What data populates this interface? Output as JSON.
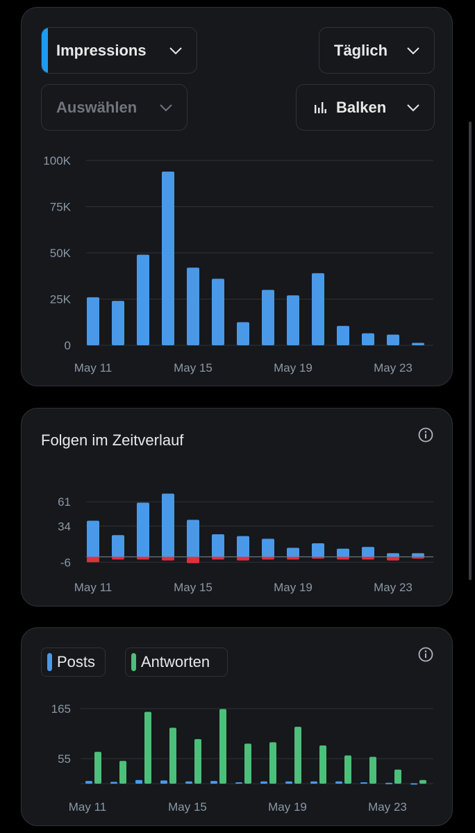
{
  "metric_select": {
    "label": "Impressions",
    "accent": "#1d9bf0"
  },
  "interval_select": {
    "label": "Täglich"
  },
  "compare_select": {
    "label": "Auswählen"
  },
  "charttype_select": {
    "label": "Balken"
  },
  "impressions_chart": {
    "chart_data": {
      "type": "bar",
      "categories": [
        "May 11",
        "May 12",
        "May 13",
        "May 14",
        "May 15",
        "May 16",
        "May 17",
        "May 18",
        "May 19",
        "May 20",
        "May 21",
        "May 22",
        "May 23",
        "May 24"
      ],
      "values": [
        26000,
        24000,
        49000,
        94000,
        42000,
        36000,
        12500,
        30000,
        27000,
        39000,
        10500,
        6500,
        5800,
        1300
      ],
      "ylim": [
        0,
        100000
      ],
      "yticks": [
        0,
        25000,
        50000,
        75000,
        100000
      ],
      "ytick_labels": [
        "0",
        "25K",
        "50K",
        "75K",
        "100K"
      ],
      "xtick_labels": [
        "May 11",
        "May 15",
        "May 19",
        "May 23"
      ],
      "color": "#4a99e9"
    }
  },
  "follows_card": {
    "title": "Folgen im Zeitverlauf"
  },
  "follows_chart": {
    "chart_data": {
      "type": "bar",
      "categories": [
        "May 11",
        "May 12",
        "May 13",
        "May 14",
        "May 15",
        "May 16",
        "May 17",
        "May 18",
        "May 19",
        "May 20",
        "May 21",
        "May 22",
        "May 23",
        "May 24"
      ],
      "series": [
        {
          "values": [
            40,
            24,
            60,
            70,
            41,
            25,
            23,
            20,
            10,
            15,
            9,
            11,
            4,
            4
          ],
          "color": "#4a99e9"
        },
        {
          "values": [
            -6,
            -3,
            -3,
            -4,
            -7,
            -3,
            -4,
            -3,
            -3,
            -2,
            -3,
            -3,
            -4,
            -2
          ],
          "color": "#e0313b"
        }
      ],
      "ylim": [
        -6,
        70
      ],
      "yticks": [
        -6,
        34,
        61
      ],
      "ytick_labels": [
        "-6",
        "34",
        "61"
      ],
      "xtick_labels": [
        "May 11",
        "May 15",
        "May 19",
        "May 23"
      ]
    }
  },
  "posts_card": {
    "legend_posts": "Posts",
    "legend_replies": "Antworten",
    "posts_color": "#4a99e9",
    "replies_color": "#4cbf7a"
  },
  "posts_chart": {
    "chart_data": {
      "type": "bar",
      "categories": [
        "May 11",
        "May 12",
        "May 13",
        "May 14",
        "May 15",
        "May 16",
        "May 17",
        "May 18",
        "May 19",
        "May 20",
        "May 21",
        "May 22",
        "May 23",
        "May 24"
      ],
      "series": [
        {
          "name": "Posts",
          "values": [
            6,
            4,
            8,
            7,
            5,
            6,
            3,
            5,
            5,
            5,
            5,
            3,
            2,
            1
          ],
          "color": "#4a99e9"
        },
        {
          "name": "Antworten",
          "values": [
            70,
            50,
            158,
            123,
            98,
            164,
            88,
            91,
            125,
            84,
            62,
            59,
            31,
            8
          ],
          "color": "#4cbf7a"
        }
      ],
      "ylim": [
        0,
        165
      ],
      "yticks": [
        55,
        165
      ],
      "ytick_labels": [
        "55",
        "165"
      ],
      "xtick_labels": [
        "May 11",
        "May 15",
        "May 19",
        "May 23"
      ]
    }
  }
}
